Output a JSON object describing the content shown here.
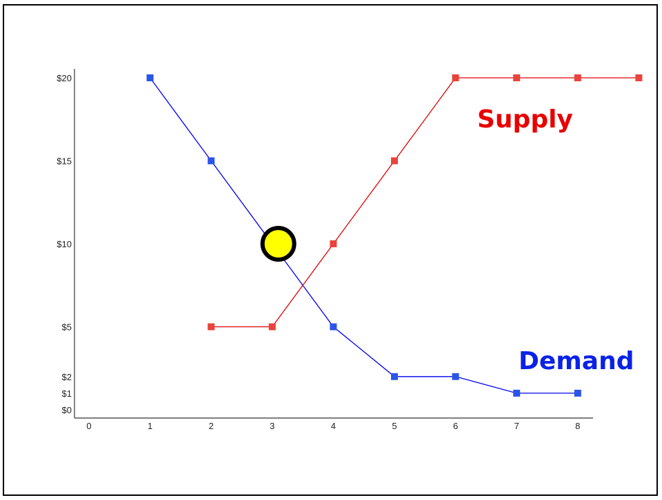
{
  "chart_data": {
    "type": "line",
    "title": "",
    "xlabel": "",
    "ylabel": "",
    "xlim": [
      0,
      8
    ],
    "ylim": [
      0,
      20
    ],
    "x_ticks": [
      0,
      1,
      2,
      3,
      4,
      5,
      6,
      7,
      8
    ],
    "y_ticks": [
      {
        "value": 0,
        "label": "$0"
      },
      {
        "value": 1,
        "label": "$1"
      },
      {
        "value": 2,
        "label": "$2"
      },
      {
        "value": 5,
        "label": "$5"
      },
      {
        "value": 10,
        "label": "$10"
      },
      {
        "value": 15,
        "label": "$15"
      },
      {
        "value": 20,
        "label": "$20"
      }
    ],
    "grid": false,
    "series": [
      {
        "name": "Demand",
        "color": "#0000ee",
        "marker_color": "#2b55e8",
        "points": [
          {
            "x": 1,
            "y": 20
          },
          {
            "x": 2,
            "y": 15
          },
          {
            "x": 3,
            "y": 10
          },
          {
            "x": 4,
            "y": 5
          },
          {
            "x": 5,
            "y": 2
          },
          {
            "x": 6,
            "y": 2
          },
          {
            "x": 7,
            "y": 1
          },
          {
            "x": 8,
            "y": 1
          }
        ]
      },
      {
        "name": "Supply",
        "color": "#dd0000",
        "marker_color": "#e8433c",
        "points": [
          {
            "x": 2,
            "y": 5
          },
          {
            "x": 3,
            "y": 5
          },
          {
            "x": 4,
            "y": 10
          },
          {
            "x": 5,
            "y": 15
          },
          {
            "x": 6,
            "y": 20
          },
          {
            "x": 7,
            "y": 20
          },
          {
            "x": 8,
            "y": 20
          },
          {
            "x": 9,
            "y": 20
          }
        ]
      }
    ],
    "annotations": [
      {
        "type": "marker",
        "x": 3.1,
        "y": 10,
        "fill": "#ffff00",
        "stroke": "#000000"
      }
    ],
    "labels": {
      "supply": {
        "text": "Supply",
        "color": "#e80000"
      },
      "demand": {
        "text": "Demand",
        "color": "#0a22e6"
      }
    }
  }
}
